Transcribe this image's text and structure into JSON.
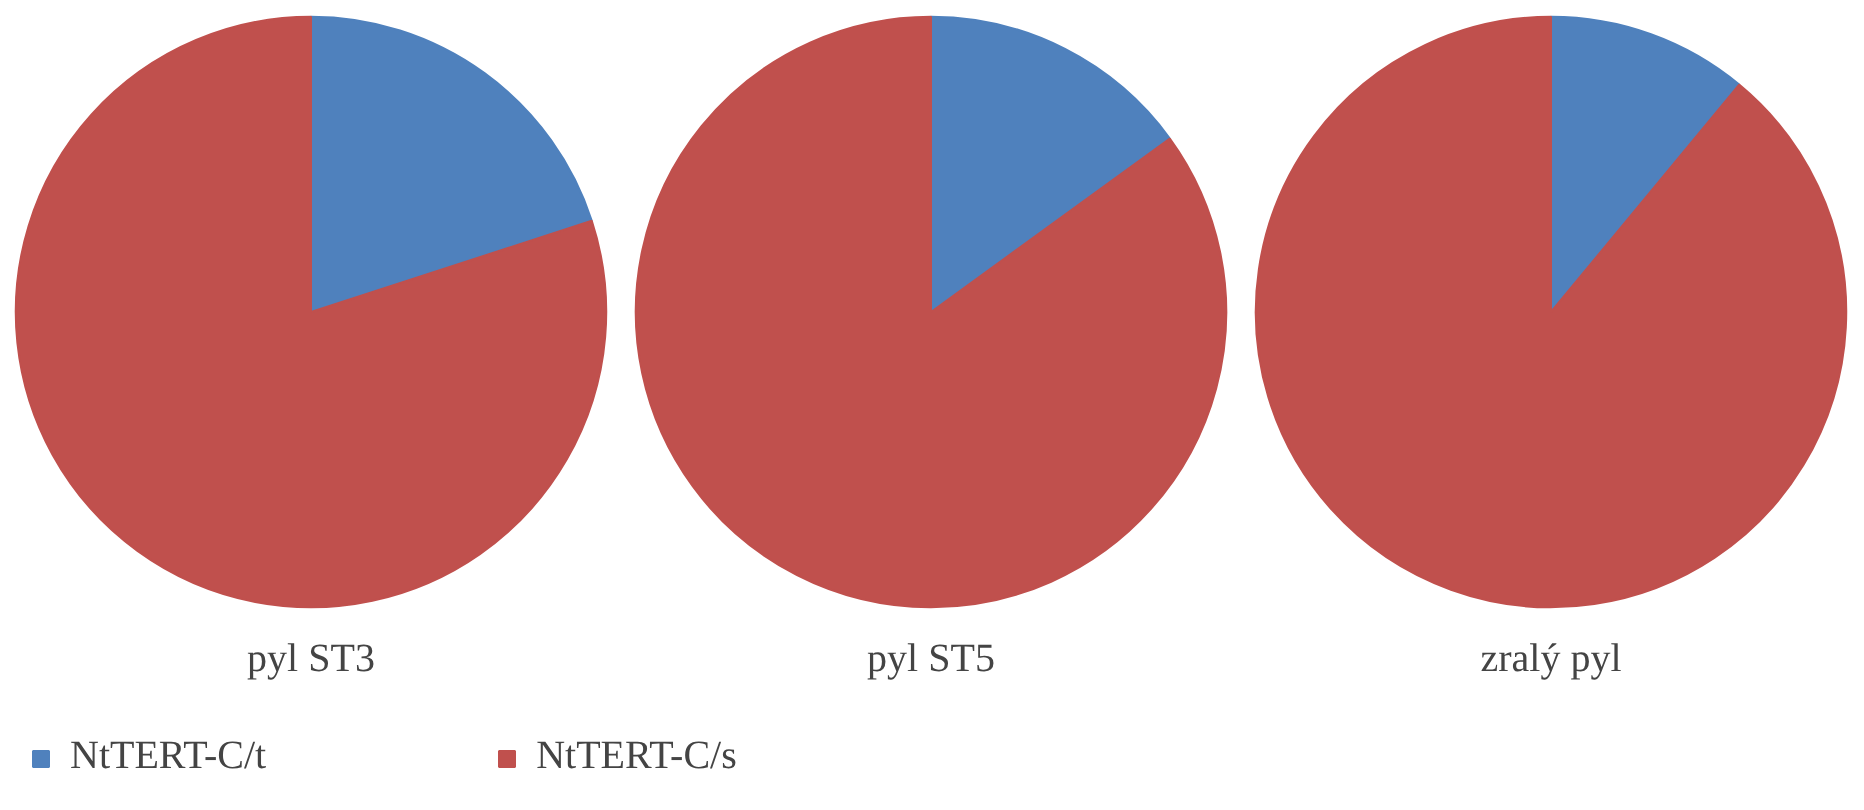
{
  "chart_data": {
    "type": "pie",
    "categories": [
      "NtTERT-C/t",
      "NtTERT-C/s"
    ],
    "colors": [
      "#4f81bd",
      "#c0504d"
    ],
    "legend": "bottom",
    "series": [
      {
        "name": "pyl ST3",
        "values": [
          20,
          80
        ]
      },
      {
        "name": "pyl ST5",
        "values": [
          15,
          85
        ]
      },
      {
        "name": "zralý pyl",
        "values": [
          11,
          89
        ]
      }
    ]
  }
}
